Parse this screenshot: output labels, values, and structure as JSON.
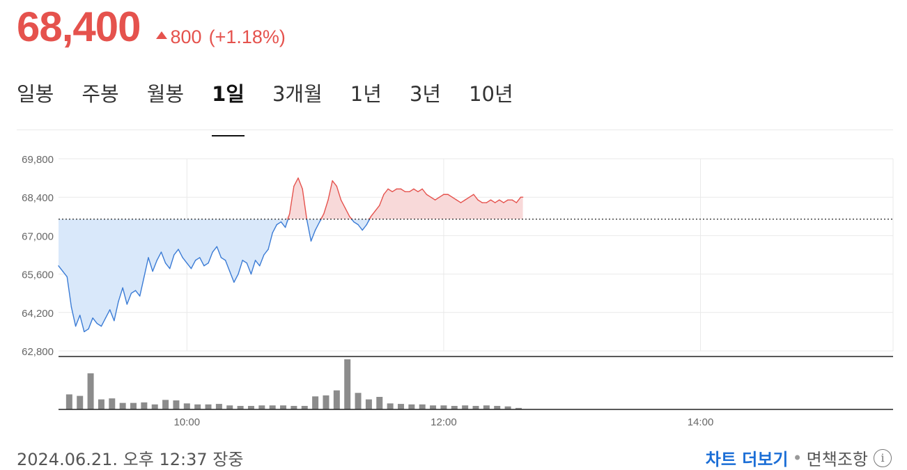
{
  "header": {
    "price": "68,400",
    "change": "800",
    "change_pct": "(+1.18%)",
    "direction": "up"
  },
  "tabs": [
    {
      "label": "일봉",
      "active": false
    },
    {
      "label": "주봉",
      "active": false
    },
    {
      "label": "월봉",
      "active": false
    },
    {
      "label": "1일",
      "active": true
    },
    {
      "label": "3개월",
      "active": false
    },
    {
      "label": "1년",
      "active": false
    },
    {
      "label": "3년",
      "active": false
    },
    {
      "label": "10년",
      "active": false
    }
  ],
  "colors": {
    "up": "#e5524d",
    "down": "#3a7bd5",
    "up_fill": "#f8d9d9",
    "down_fill": "#d9e8fa",
    "volume": "#8c8c8c",
    "grid": "#e9e9e9"
  },
  "chart_data": {
    "type": "line",
    "x_axis": "time",
    "xlim": [
      "09:00",
      "15:30"
    ],
    "ylim": [
      62800,
      69800
    ],
    "y_ticks": [
      "69,800",
      "68,400",
      "67,000",
      "65,600",
      "64,200",
      "62,800"
    ],
    "y_tick_values": [
      69800,
      68400,
      67000,
      65600,
      64200,
      62800
    ],
    "x_ticks": [
      "10:00",
      "12:00",
      "14:00"
    ],
    "previous_close": 67600,
    "series": [
      {
        "x": [
          "09:00",
          "09:02",
          "09:04",
          "09:06",
          "09:08",
          "09:10",
          "09:12",
          "09:14",
          "09:16",
          "09:18",
          "09:20",
          "09:22",
          "09:24",
          "09:26",
          "09:28",
          "09:30",
          "09:32",
          "09:34",
          "09:36",
          "09:38",
          "09:40",
          "09:42",
          "09:44",
          "09:46",
          "09:48",
          "09:50",
          "09:52",
          "09:54",
          "09:56",
          "09:58",
          "10:00",
          "10:02",
          "10:04",
          "10:06",
          "10:08",
          "10:10",
          "10:12",
          "10:14",
          "10:16",
          "10:18",
          "10:20",
          "10:22",
          "10:24",
          "10:26",
          "10:28",
          "10:30",
          "10:32",
          "10:34",
          "10:36",
          "10:38",
          "10:40",
          "10:42",
          "10:44",
          "10:46",
          "10:48",
          "10:50",
          "10:52",
          "10:54",
          "10:56",
          "10:58",
          "11:00",
          "11:02",
          "11:04",
          "11:06",
          "11:08",
          "11:10",
          "11:12",
          "11:14",
          "11:16",
          "11:18",
          "11:20",
          "11:22",
          "11:24",
          "11:26",
          "11:28",
          "11:30",
          "11:32",
          "11:34",
          "11:36",
          "11:38",
          "11:40",
          "11:42",
          "11:44",
          "11:46",
          "11:48",
          "11:50",
          "11:52",
          "11:54",
          "11:56",
          "11:58",
          "12:00",
          "12:02",
          "12:04",
          "12:06",
          "12:08",
          "12:10",
          "12:12",
          "12:14",
          "12:16",
          "12:18",
          "12:20",
          "12:22",
          "12:24",
          "12:26",
          "12:28",
          "12:30",
          "12:32",
          "12:34",
          "12:36",
          "12:37"
        ],
        "values": [
          65900,
          65700,
          65500,
          64400,
          63700,
          64100,
          63500,
          63600,
          64000,
          63800,
          63700,
          64000,
          64300,
          63900,
          64600,
          65100,
          64500,
          64900,
          65000,
          64800,
          65500,
          66200,
          65700,
          66100,
          66400,
          66000,
          65800,
          66300,
          66500,
          66200,
          66000,
          65800,
          66100,
          66200,
          65900,
          66000,
          66400,
          66600,
          66200,
          66100,
          65700,
          65300,
          65600,
          66100,
          66000,
          65600,
          66100,
          65900,
          66300,
          66500,
          67100,
          67400,
          67500,
          67300,
          67800,
          68800,
          69100,
          68700,
          67600,
          66800,
          67200,
          67500,
          67800,
          68300,
          69000,
          68800,
          68300,
          68000,
          67700,
          67500,
          67400,
          67200,
          67400,
          67700,
          67900,
          68100,
          68500,
          68700,
          68600,
          68700,
          68700,
          68600,
          68600,
          68700,
          68600,
          68700,
          68500,
          68400,
          68300,
          68400,
          68500,
          68500,
          68400,
          68300,
          68200,
          68300,
          68400,
          68500,
          68300,
          68200,
          68200,
          68300,
          68200,
          68300,
          68200,
          68300,
          68300,
          68200,
          68400,
          68400
        ]
      }
    ],
    "volume": {
      "x": [
        "09:05",
        "09:10",
        "09:15",
        "09:20",
        "09:25",
        "09:30",
        "09:35",
        "09:40",
        "09:45",
        "09:50",
        "09:55",
        "10:00",
        "10:05",
        "10:10",
        "10:15",
        "10:20",
        "10:25",
        "10:30",
        "10:35",
        "10:40",
        "10:45",
        "10:50",
        "10:55",
        "11:00",
        "11:05",
        "11:10",
        "11:15",
        "11:20",
        "11:25",
        "11:30",
        "11:35",
        "11:40",
        "11:45",
        "11:50",
        "11:55",
        "12:00",
        "12:05",
        "12:10",
        "12:15",
        "12:20",
        "12:25",
        "12:30",
        "12:35"
      ],
      "values": [
        30,
        27,
        72,
        20,
        22,
        13,
        13,
        14,
        10,
        19,
        18,
        12,
        10,
        10,
        11,
        8,
        7,
        7,
        8,
        8,
        8,
        7,
        7,
        26,
        28,
        38,
        100,
        33,
        20,
        25,
        12,
        11,
        10,
        10,
        8,
        8,
        7,
        8,
        7,
        8,
        7,
        6,
        3
      ]
    }
  },
  "footer": {
    "timestamp": "2024.06.21. 오후 12:37 장중",
    "more_chart": "차트 더보기",
    "separator": "•",
    "notice": "면책조항",
    "info_icon": "info-icon"
  }
}
